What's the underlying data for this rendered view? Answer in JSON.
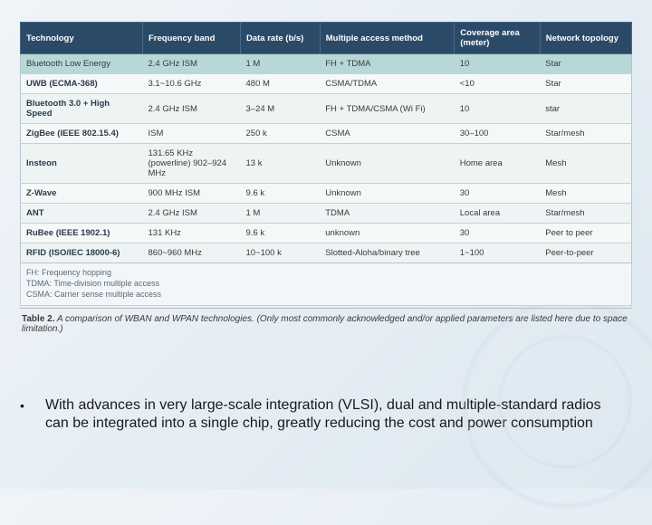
{
  "table": {
    "columns": [
      "Technology",
      "Frequency band",
      "Data rate (b/s)",
      "Multiple access method",
      "Coverage area (meter)",
      "Network topology"
    ],
    "col_widths_pct": [
      20,
      16,
      13,
      22,
      14,
      15
    ],
    "header_bg": "#2a4a68",
    "header_fg": "#ffffff",
    "row_alt_bg_a": "#eef4f4",
    "row_alt_bg_b": "#f5f8f8",
    "first_row_bg": "#b8d8d8",
    "border_color": "#c8d0d6",
    "font_size_pt": 9.5,
    "rows": [
      [
        "Bluetooth Low Energy",
        "2.4 GHz ISM",
        "1 M",
        "FH + TDMA",
        "10",
        "Star"
      ],
      [
        "UWB (ECMA-368)",
        "3.1~10.6 GHz",
        "480 M",
        "CSMA/TDMA",
        "<10",
        "Star"
      ],
      [
        "Bluetooth 3.0 + High Speed",
        "2.4 GHz ISM",
        "3–24 M",
        "FH + TDMA/CSMA (Wi Fi)",
        "10",
        "star"
      ],
      [
        "ZigBee (IEEE 802.15.4)",
        "ISM",
        "250 k",
        "CSMA",
        "30–100",
        "Star/mesh"
      ],
      [
        "Insteon",
        "131.65 KHz (powerline) 902–924 MHz",
        "13 k",
        "Unknown",
        "Home area",
        "Mesh"
      ],
      [
        "Z-Wave",
        "900 MHz ISM",
        "9.6 k",
        "Unknown",
        "30",
        "Mesh"
      ],
      [
        "ANT",
        "2.4 GHz ISM",
        "1 M",
        "TDMA",
        "Local area",
        "Star/mesh"
      ],
      [
        "RuBee (IEEE 1902.1)",
        "131 KHz",
        "9.6 k",
        "unknown",
        "30",
        "Peer to peer"
      ],
      [
        "RFID (ISO/IEC 18000-6)",
        "860~960 MHz",
        "10~100 k",
        "Slotted-Aloha/binary tree",
        "1~100",
        "Peer-to-peer"
      ]
    ]
  },
  "legend": {
    "lines": [
      "FH: Frequency hopping",
      "TDMA: Time-division multiple access",
      "CSMA: Carrier sense multiple access"
    ]
  },
  "caption": {
    "label": "Table 2.",
    "text": "A comparison of WBAN and WPAN technologies. (Only most commonly acknowledged and/or applied parameters are listed here due to space limitation.)"
  },
  "bullet": {
    "text": "With advances in very large-scale integration (VLSI), dual and multiple-standard radios can be integrated into a single chip, greatly reducing the cost and power consumption"
  },
  "background": {
    "gradient_from": "#f0f4f8",
    "gradient_to": "#dde8f0",
    "swirl_color": "#cbd8e4",
    "swirl_opacity": 0.25
  }
}
